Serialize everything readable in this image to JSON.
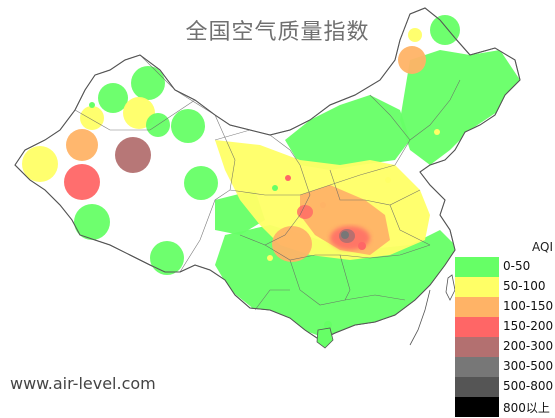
{
  "map": {
    "title": "全国空气质量指数",
    "watermark": "www.air-level.com"
  },
  "legend": {
    "header": "AQI",
    "items": [
      {
        "label": "0-50",
        "color": "#66ff66"
      },
      {
        "label": "50-100",
        "color": "#ffff66"
      },
      {
        "label": "100-150",
        "color": "#ffb366"
      },
      {
        "label": "150-200",
        "color": "#ff6666"
      },
      {
        "label": "200-300",
        "color": "#b37070"
      },
      {
        "label": "300-500",
        "color": "#777777"
      },
      {
        "label": "500-800",
        "color": "#555555"
      },
      {
        "label": "800以上",
        "color": "#000000"
      }
    ]
  }
}
